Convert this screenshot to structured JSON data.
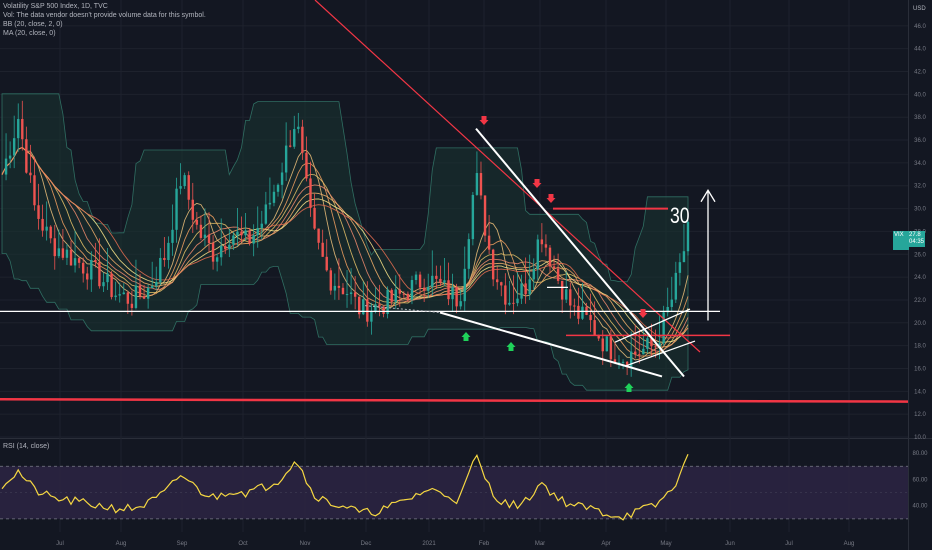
{
  "legend": {
    "title": "Volatility S&P 500 Index, 1D, TVC",
    "vol_note": "Vol: The data vendor doesn't provide volume data for this symbol.",
    "bb": "BB (20, close, 2, 0)",
    "ma": "MA (20, close, 0)",
    "rsi": "RSI (14, close)"
  },
  "axis": {
    "unit": "USD",
    "price_ticks": [
      "46.0",
      "44.0",
      "42.0",
      "40.0",
      "38.0",
      "36.0",
      "34.0",
      "32.0",
      "30.0",
      "28.0",
      "26.0",
      "24.0",
      "22.0",
      "20.0",
      "18.0",
      "16.0",
      "14.0",
      "12.0",
      "10.0"
    ],
    "rsi_ticks": [
      "80.00",
      "60.00",
      "40.00"
    ]
  },
  "current": {
    "price": "27.8",
    "secondary": "04:35",
    "label": "VIX"
  },
  "annotation_text": "30",
  "colors": {
    "background": "#131722",
    "up": "#26a69a",
    "down": "#ef5350",
    "trendline_red": "#f23645",
    "white_lines": "#ffffff",
    "rsi_line": "#f5d742",
    "rsi_band": "#2d2443",
    "band_fill": "#1a3431"
  },
  "chart_data": {
    "type": "candlestick",
    "title": "Volatility S&P 500 Index, 1D, TVC",
    "x_ticks": [
      "Jul",
      "Aug",
      "Sep",
      "Oct",
      "Nov",
      "Dec",
      "2021",
      "Feb",
      "Mar",
      "Apr",
      "May",
      "Jun",
      "Jul",
      "Aug"
    ],
    "ylim": [
      10,
      48
    ],
    "rsi_ylim": [
      20,
      90
    ],
    "horizontal_levels": [
      21,
      13.3,
      30,
      18.9
    ],
    "close_series": [
      {
        "x": "Jun",
        "close": 33
      },
      {
        "x": "Jun",
        "close": 38
      },
      {
        "x": "Jul",
        "close": 30
      },
      {
        "x": "Jul",
        "close": 27
      },
      {
        "x": "Jul",
        "close": 26
      },
      {
        "x": "Jul",
        "close": 25
      },
      {
        "x": "Aug",
        "close": 24
      },
      {
        "x": "Aug",
        "close": 22.5
      },
      {
        "x": "Aug",
        "close": 22
      },
      {
        "x": "Aug",
        "close": 23
      },
      {
        "x": "Sep",
        "close": 26
      },
      {
        "x": "Sep",
        "close": 33
      },
      {
        "x": "Sep",
        "close": 28
      },
      {
        "x": "Sep",
        "close": 26
      },
      {
        "x": "Oct",
        "close": 28
      },
      {
        "x": "Oct",
        "close": 27
      },
      {
        "x": "Oct",
        "close": 29
      },
      {
        "x": "Oct",
        "close": 33
      },
      {
        "x": "Nov",
        "close": 38
      },
      {
        "x": "Nov",
        "close": 28
      },
      {
        "x": "Nov",
        "close": 24
      },
      {
        "x": "Nov",
        "close": 23
      },
      {
        "x": "Dec",
        "close": 21
      },
      {
        "x": "Dec",
        "close": 21.5
      },
      {
        "x": "Dec",
        "close": 22
      },
      {
        "x": "Dec",
        "close": 23
      },
      {
        "x": "2021",
        "close": 24
      },
      {
        "x": "2021",
        "close": 23
      },
      {
        "x": "2021",
        "close": 22
      },
      {
        "x": "Feb",
        "close": 33
      },
      {
        "x": "Feb",
        "close": 25
      },
      {
        "x": "Feb",
        "close": 22
      },
      {
        "x": "Feb",
        "close": 23
      },
      {
        "x": "Mar",
        "close": 28
      },
      {
        "x": "Mar",
        "close": 24
      },
      {
        "x": "Mar",
        "close": 21
      },
      {
        "x": "Mar",
        "close": 20
      },
      {
        "x": "Apr",
        "close": 18
      },
      {
        "x": "Apr",
        "close": 17
      },
      {
        "x": "Apr",
        "close": 17.5
      },
      {
        "x": "May",
        "close": 18
      },
      {
        "x": "May",
        "close": 22
      },
      {
        "x": "May",
        "close": 27.8
      }
    ],
    "rsi_series": [
      56,
      66,
      52,
      46,
      44,
      42,
      40,
      38,
      38,
      42,
      50,
      64,
      52,
      46,
      52,
      50,
      54,
      60,
      76,
      50,
      42,
      40,
      34,
      36,
      40,
      46,
      52,
      50,
      44,
      78,
      50,
      40,
      42,
      58,
      46,
      40,
      38,
      34,
      32,
      36,
      40,
      52,
      76
    ]
  }
}
